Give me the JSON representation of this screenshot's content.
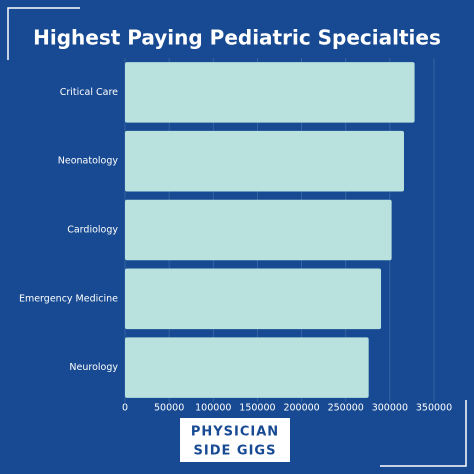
{
  "chart_data": {
    "type": "barh",
    "title": "Highest Paying Pediatric Specialties",
    "categories": [
      "Critical Care",
      "Neonatology",
      "Cardiology",
      "Emergency Medicine",
      "Neurology"
    ],
    "values": [
      328000,
      316000,
      302000,
      290000,
      276000
    ],
    "color": "#b9e2de",
    "xlim": [
      0,
      350000
    ],
    "xticks": [
      0,
      50000,
      100000,
      150000,
      200000,
      250000,
      300000,
      350000
    ],
    "grid": true,
    "logo_lines": [
      "PHYSICIAN",
      "SIDE GIGS"
    ]
  }
}
